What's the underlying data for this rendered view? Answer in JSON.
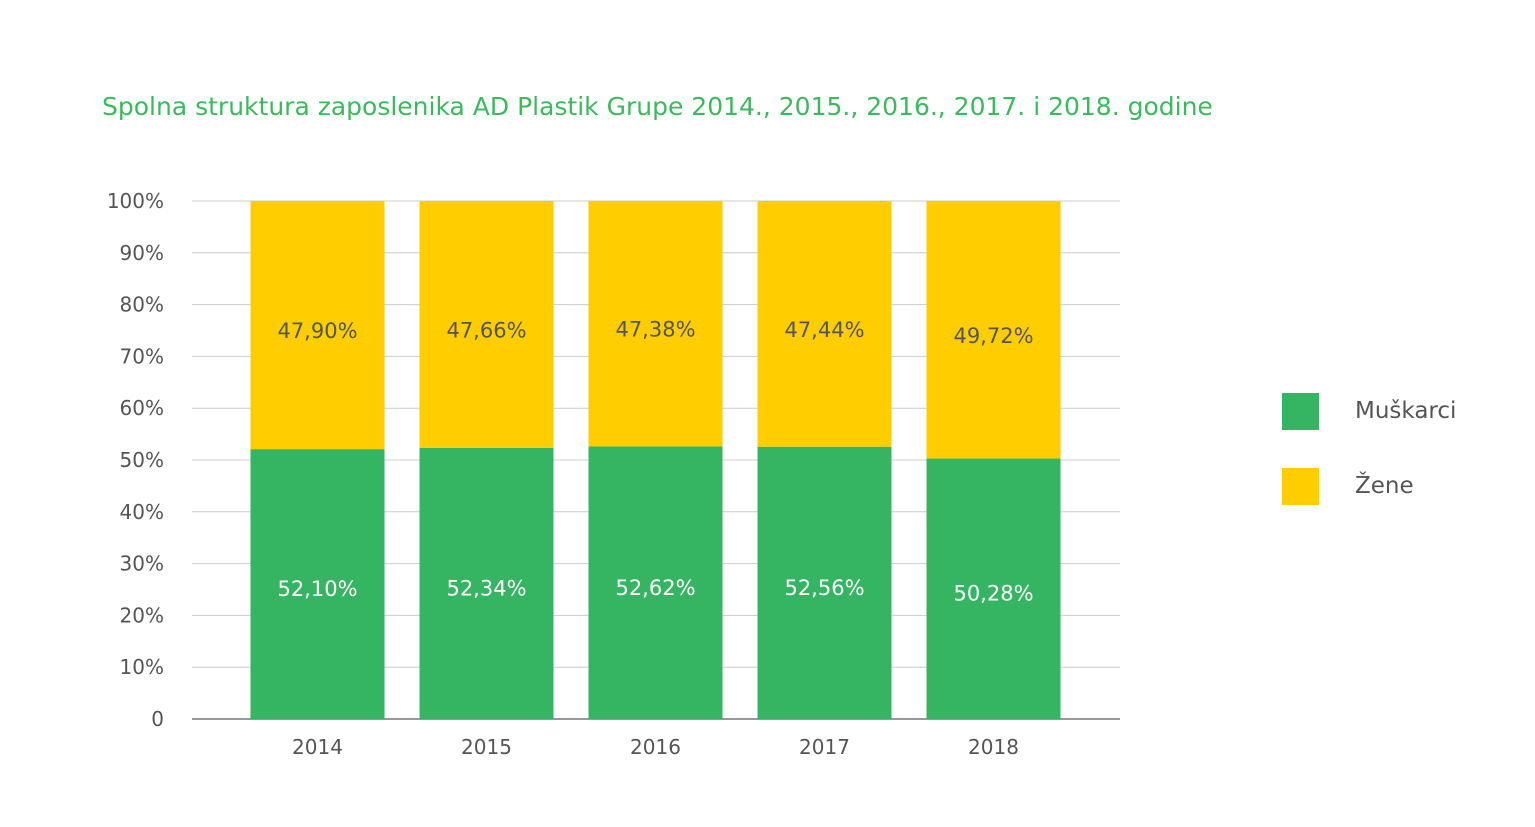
{
  "chart_data": {
    "type": "bar",
    "stacked": true,
    "title": "Spolna struktura zaposlenika AD Plastik Grupe 2014., 2015., 2016., 2017. i 2018. godine",
    "categories": [
      "2014",
      "2015",
      "2016",
      "2017",
      "2018"
    ],
    "series": [
      {
        "name": "Muškarci",
        "color": "#35b561",
        "values": [
          52.1,
          52.34,
          52.62,
          52.56,
          50.28
        ],
        "labels": [
          "52,10%",
          "52,34%",
          "52,62%",
          "52,56%",
          "50,28%"
        ]
      },
      {
        "name": "Žene",
        "color": "#ffcd00",
        "values": [
          47.9,
          47.66,
          47.38,
          47.44,
          49.72
        ],
        "labels": [
          "47,90%",
          "47,66%",
          "47,38%",
          "47,44%",
          "49,72%"
        ]
      }
    ],
    "ylim": [
      0,
      100
    ],
    "yticks": [
      "0",
      "10%",
      "20%",
      "30%",
      "40%",
      "50%",
      "60%",
      "70%",
      "80%",
      "90%",
      "100%"
    ],
    "grid": true,
    "legend_position": "right"
  }
}
